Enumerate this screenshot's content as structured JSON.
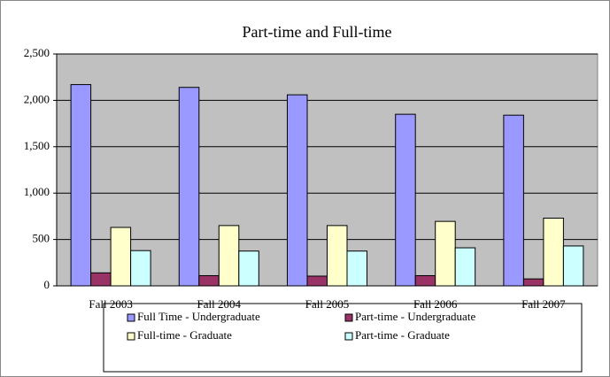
{
  "chart_data": {
    "type": "bar",
    "title": "Part-time and Full-time",
    "categories": [
      "Fall 2003",
      "Fall 2004",
      "Fall 2005",
      "Fall 2006",
      "Fall 2007"
    ],
    "series": [
      {
        "name": "Full Time - Undergraduate",
        "color": "#9999ff",
        "values": [
          2170,
          2140,
          2060,
          1850,
          1840
        ]
      },
      {
        "name": "Part-time - Undergraduate",
        "color": "#993366",
        "values": [
          140,
          110,
          105,
          110,
          75
        ]
      },
      {
        "name": "Full-time - Graduate",
        "color": "#ffffcc",
        "values": [
          630,
          650,
          650,
          695,
          730
        ]
      },
      {
        "name": "Part-time - Graduate",
        "color": "#ccffff",
        "values": [
          380,
          375,
          375,
          410,
          430
        ]
      }
    ],
    "ylim": [
      0,
      2500
    ],
    "yticks": [
      0,
      500,
      {
        "value": 1000,
        "label": "1,000"
      },
      {
        "value": 1500,
        "label": "1,500"
      },
      {
        "value": 2000,
        "label": "2,000"
      },
      {
        "value": 2500,
        "label": "2,500"
      }
    ],
    "grid": true,
    "legend": "bottom"
  }
}
